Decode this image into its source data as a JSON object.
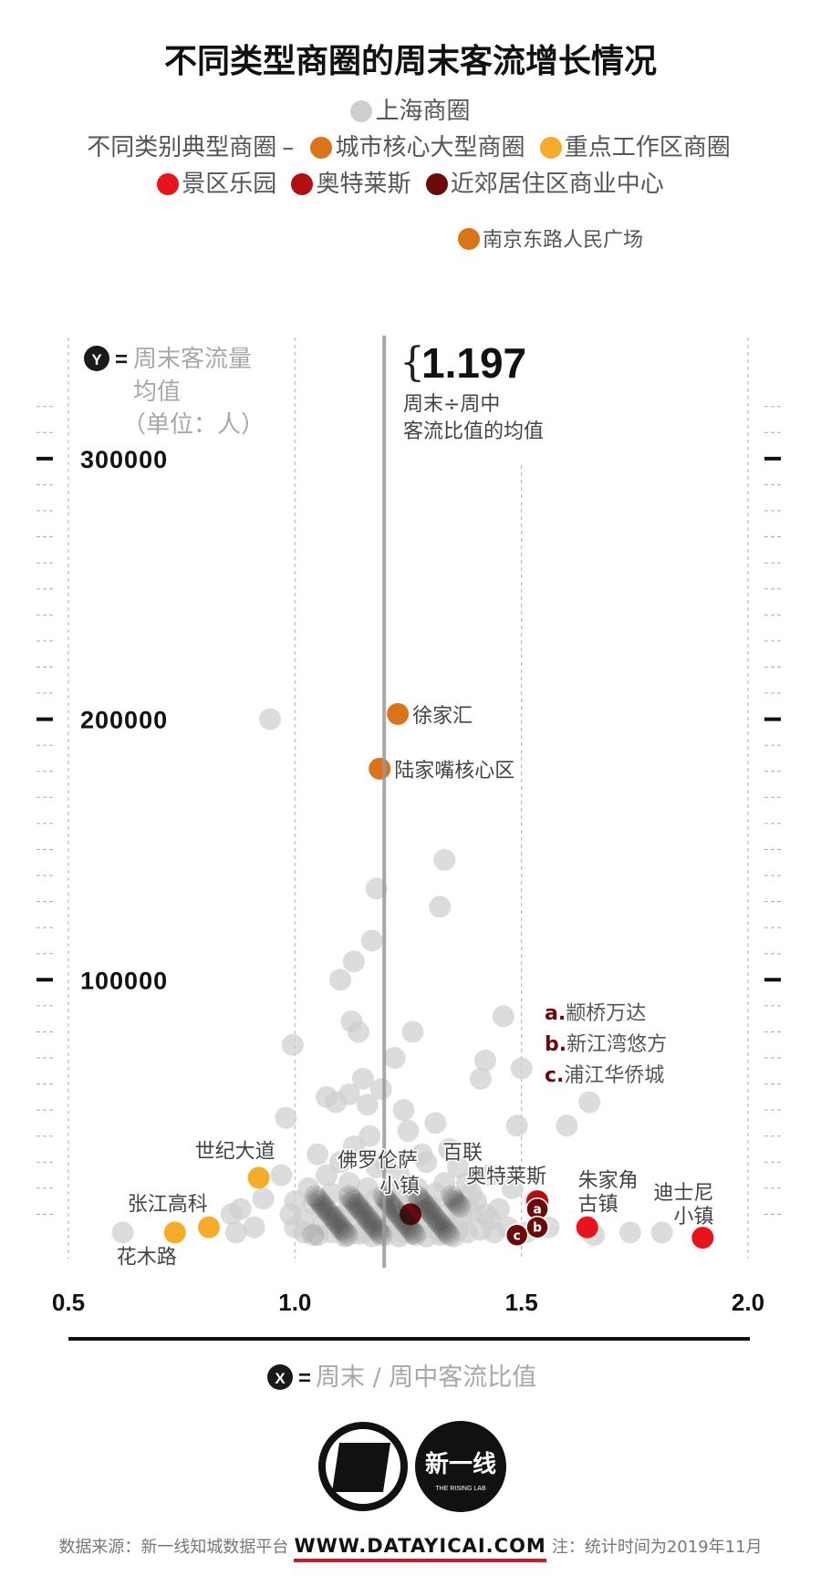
{
  "title": "不同类型商圈的周末客流增长情况",
  "legend": {
    "shanghai": {
      "label": "上海商圈",
      "color": "#cfcfcf"
    },
    "prefix": "不同类别典型商圈",
    "dash": "–",
    "categories": [
      {
        "label": "城市核心大型商圈",
        "color": "#d9741a"
      },
      {
        "label": "重点工作区商圈",
        "color": "#f5ac2a"
      },
      {
        "label": "景区乐园",
        "color": "#e8141b"
      },
      {
        "label": "奥特莱斯",
        "color": "#b30f10"
      },
      {
        "label": "近郊居住区商业中心",
        "color": "#6a0a0a"
      }
    ],
    "extra": {
      "label": "南京东路人民广场",
      "color": "#d9741a"
    }
  },
  "y_axis": {
    "badge": "Y",
    "eq": "=",
    "lines": [
      "周末客流量",
      "均值",
      "（单位：人）"
    ]
  },
  "x_axis": {
    "badge": "X",
    "eq": "=",
    "label": "周末 / 周中客流比值"
  },
  "mean": {
    "value": "1.197",
    "brace": "{",
    "lines": [
      "周末÷周中",
      "客流比值的均值"
    ]
  },
  "abc_notes": [
    {
      "letter": "a.",
      "name": "颛桥万达"
    },
    {
      "letter": "b.",
      "name": "新江湾悠方"
    },
    {
      "letter": "c.",
      "name": "浦江华侨城"
    }
  ],
  "logo_text": "新一线",
  "logo_sub": "THE RISING LAB",
  "footer": {
    "source": "数据来源：新一线知城数据平台",
    "site": "WWW.DATAYICAI.COM",
    "note": "注：统计时间为2019年11月"
  },
  "chart_data": {
    "type": "scatter",
    "xlim": [
      0.5,
      2.0
    ],
    "ylim": [
      0,
      350000
    ],
    "xticks": [
      "0.5",
      "1.0",
      "1.5",
      "2.0"
    ],
    "xtick_values": [
      0.5,
      1.0,
      1.5,
      2.0
    ],
    "yticks": [
      "100000",
      "200000",
      "300000"
    ],
    "ytick_values": [
      100000,
      200000,
      300000
    ],
    "mean_x": 1.197,
    "series": [
      {
        "name": "上海商圈",
        "color": "#cfcfcf",
        "points": [
          [
            0.62,
            3000
          ],
          [
            0.86,
            10000
          ],
          [
            0.87,
            3000
          ],
          [
            0.88,
            12000
          ],
          [
            0.91,
            5000
          ],
          [
            0.93,
            16000
          ],
          [
            0.945,
            200000
          ],
          [
            0.97,
            25000
          ],
          [
            0.98,
            47000
          ],
          [
            0.995,
            75000
          ],
          [
            1.0,
            15000
          ],
          [
            1.02,
            3000
          ],
          [
            1.05,
            33000
          ],
          [
            1.07,
            55000
          ],
          [
            1.09,
            53000
          ],
          [
            1.1,
            100000
          ],
          [
            1.12,
            56000
          ],
          [
            1.125,
            84000
          ],
          [
            1.13,
            107000
          ],
          [
            1.14,
            80000
          ],
          [
            1.15,
            62000
          ],
          [
            1.16,
            52000
          ],
          [
            1.165,
            40000
          ],
          [
            1.17,
            115000
          ],
          [
            1.18,
            135000
          ],
          [
            1.19,
            58000
          ],
          [
            1.2,
            30000
          ],
          [
            1.22,
            70000
          ],
          [
            1.25,
            42000
          ],
          [
            1.26,
            80000
          ],
          [
            1.29,
            30000
          ],
          [
            1.31,
            45000
          ],
          [
            1.32,
            128000
          ],
          [
            1.33,
            146000
          ],
          [
            1.34,
            35000
          ],
          [
            1.36,
            28000
          ],
          [
            1.38,
            22000
          ],
          [
            1.4,
            15000
          ],
          [
            1.41,
            62000
          ],
          [
            1.42,
            69000
          ],
          [
            1.43,
            25000
          ],
          [
            1.45,
            12000
          ],
          [
            1.46,
            86000
          ],
          [
            1.49,
            44000
          ],
          [
            1.5,
            66000
          ],
          [
            1.53,
            15000
          ],
          [
            1.56,
            5000
          ],
          [
            1.6,
            44000
          ],
          [
            1.65,
            53000
          ],
          [
            1.66,
            2000
          ],
          [
            1.74,
            3000
          ],
          [
            1.81,
            3000
          ],
          [
            1.02,
            8000
          ],
          [
            1.04,
            14000
          ],
          [
            1.06,
            6000
          ],
          [
            1.08,
            18000
          ],
          [
            1.1,
            4000
          ],
          [
            1.11,
            10000
          ],
          [
            1.12,
            22000
          ],
          [
            1.13,
            6000
          ],
          [
            1.14,
            14000
          ],
          [
            1.15,
            3000
          ],
          [
            1.16,
            20000
          ],
          [
            1.17,
            9000
          ],
          [
            1.18,
            28000
          ],
          [
            1.19,
            4000
          ],
          [
            1.2,
            12000
          ],
          [
            1.21,
            19000
          ],
          [
            1.22,
            6000
          ],
          [
            1.23,
            25000
          ],
          [
            1.24,
            3000
          ],
          [
            1.25,
            14000
          ],
          [
            1.26,
            8000
          ],
          [
            1.27,
            20000
          ],
          [
            1.28,
            4000
          ],
          [
            1.29,
            12000
          ],
          [
            1.3,
            7000
          ],
          [
            1.31,
            18000
          ],
          [
            1.32,
            3000
          ],
          [
            1.33,
            10000
          ],
          [
            1.34,
            5000
          ],
          [
            1.35,
            15000
          ],
          [
            1.36,
            4000
          ],
          [
            1.37,
            9000
          ],
          [
            1.38,
            3000
          ],
          [
            1.39,
            11000
          ],
          [
            1.41,
            4000
          ],
          [
            1.43,
            8000
          ],
          [
            1.44,
            3000
          ],
          [
            1.47,
            5000
          ],
          [
            1.48,
            20000
          ],
          [
            1.51,
            3000
          ],
          [
            1.05,
            2000
          ],
          [
            1.08,
            3000
          ],
          [
            1.11,
            1500
          ],
          [
            1.14,
            2500
          ],
          [
            1.17,
            1500
          ],
          [
            1.2,
            2000
          ],
          [
            1.23,
            1500
          ],
          [
            1.26,
            2500
          ],
          [
            1.29,
            1500
          ],
          [
            1.32,
            2000
          ],
          [
            1.35,
            1500
          ],
          [
            1.1,
            30000
          ],
          [
            1.07,
            25000
          ],
          [
            1.13,
            36000
          ],
          [
            1.28,
            33000
          ],
          [
            1.24,
            50000
          ],
          [
            1.0,
            5000
          ],
          [
            0.99,
            10000
          ],
          [
            1.03,
            20000
          ],
          [
            1.06,
            12000
          ],
          [
            1.09,
            9000
          ],
          [
            1.12,
            14000
          ],
          [
            1.15,
            11000
          ],
          [
            1.18,
            16000
          ],
          [
            1.21,
            8000
          ],
          [
            1.24,
            18000
          ],
          [
            1.27,
            10000
          ],
          [
            1.3,
            13000
          ],
          [
            1.33,
            22000
          ],
          [
            1.36,
            12000
          ],
          [
            1.39,
            18000
          ],
          [
            1.42,
            10000
          ]
        ]
      },
      {
        "name": "城市核心大型商圈",
        "color": "#d9741a",
        "points": [
          [
            1.227,
            202000
          ],
          [
            1.187,
            181000
          ]
        ]
      },
      {
        "name": "重点工作区商圈",
        "color": "#f5ac2a",
        "points": [
          [
            0.92,
            24000
          ],
          [
            0.735,
            3000
          ],
          [
            0.81,
            5000
          ]
        ]
      },
      {
        "name": "景区乐园",
        "color": "#e8141b",
        "points": [
          [
            1.645,
            5000
          ],
          [
            1.9,
            1000
          ]
        ]
      },
      {
        "name": "奥特莱斯",
        "color": "#b30f10",
        "points": [
          [
            1.535,
            15000
          ]
        ]
      },
      {
        "name": "近郊居住区商业中心",
        "color": "#6a0a0a",
        "points": [
          [
            1.255,
            10000
          ]
        ]
      }
    ],
    "abc_points": [
      {
        "letter": "a",
        "x": 1.535,
        "y": 12000
      },
      {
        "letter": "b",
        "x": 1.535,
        "y": 5000
      },
      {
        "letter": "c",
        "x": 1.49,
        "y": 2000
      }
    ],
    "labels": [
      {
        "text": "徐家汇",
        "x": 1.227,
        "y": 202000,
        "anchor": "start",
        "dx": 16,
        "dy": 9
      },
      {
        "text": "陆家嘴核心区",
        "x": 1.187,
        "y": 181000,
        "anchor": "start",
        "dx": 16,
        "dy": 9
      },
      {
        "text": "世纪大道",
        "x": 0.92,
        "y": 24000,
        "anchor": "end",
        "dx": 18,
        "dy": -22
      },
      {
        "text": "张江高科",
        "x": 0.735,
        "y": 3000,
        "anchor": "start",
        "dx": -52,
        "dy": -24
      },
      {
        "text": "花木路",
        "x": 0.735,
        "y": 3000,
        "anchor": "start",
        "dx": -64,
        "dy": 34
      },
      {
        "text": "佛罗伦萨",
        "x": 1.255,
        "y": 10000,
        "anchor": "middle",
        "dx": -36,
        "dy": -52
      },
      {
        "text": "小镇",
        "x": 1.255,
        "y": 10000,
        "anchor": "middle",
        "dx": -12,
        "dy": -24
      },
      {
        "text": "百联",
        "x": 1.535,
        "y": 15000,
        "anchor": "end",
        "dx": -60,
        "dy": -46
      },
      {
        "text": "奥特莱斯",
        "x": 1.535,
        "y": 15000,
        "anchor": "end",
        "dx": 10,
        "dy": -20
      },
      {
        "text": "朱家角",
        "x": 1.645,
        "y": 5000,
        "anchor": "start",
        "dx": -10,
        "dy": -44
      },
      {
        "text": "古镇",
        "x": 1.645,
        "y": 5000,
        "anchor": "start",
        "dx": -10,
        "dy": -18
      },
      {
        "text": "迪士尼",
        "x": 1.9,
        "y": 1000,
        "anchor": "end",
        "dx": 12,
        "dy": -42
      },
      {
        "text": "小镇",
        "x": 1.9,
        "y": 1000,
        "anchor": "end",
        "dx": 12,
        "dy": -16
      }
    ]
  }
}
